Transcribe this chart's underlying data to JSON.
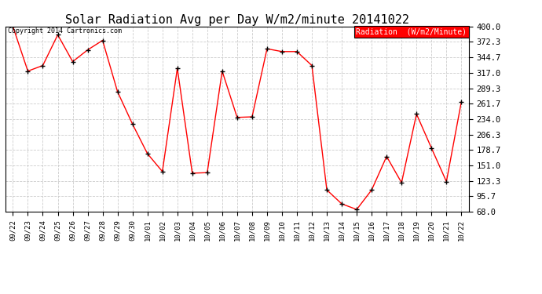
{
  "title": "Solar Radiation Avg per Day W/m2/minute 20141022",
  "copyright": "Copyright 2014 Cartronics.com",
  "legend_label": "Radiation  (W/m2/Minute)",
  "x_labels": [
    "09/22",
    "09/23",
    "09/24",
    "09/25",
    "09/26",
    "09/27",
    "09/28",
    "09/29",
    "09/30",
    "10/01",
    "10/02",
    "10/03",
    "10/04",
    "10/05",
    "10/06",
    "10/07",
    "10/08",
    "10/09",
    "10/10",
    "10/11",
    "10/12",
    "10/13",
    "10/14",
    "10/15",
    "10/16",
    "10/17",
    "10/18",
    "10/19",
    "10/20",
    "10/21",
    "10/22"
  ],
  "y_values": [
    400.0,
    320.0,
    330.0,
    385.0,
    337.0,
    358.0,
    375.0,
    283.0,
    225.0,
    172.0,
    140.0,
    325.0,
    137.0,
    138.0,
    320.0,
    237.0,
    238.0,
    360.0,
    355.0,
    355.0,
    330.0,
    107.0,
    82.0,
    72.0,
    107.0,
    167.0,
    120.0,
    243.0,
    182.0,
    122.0,
    265.0
  ],
  "y_ticks": [
    68.0,
    95.7,
    123.3,
    151.0,
    178.7,
    206.3,
    234.0,
    261.7,
    289.3,
    317.0,
    344.7,
    372.3,
    400.0
  ],
  "ylim": [
    68.0,
    400.0
  ],
  "bg_color": "#ffffff",
  "plot_bg_color": "#ffffff",
  "line_color": "#ff0000",
  "marker_color": "#000000",
  "grid_color": "#cccccc",
  "title_fontsize": 11,
  "legend_bg": "#ff0000",
  "legend_fg": "#ffffff"
}
